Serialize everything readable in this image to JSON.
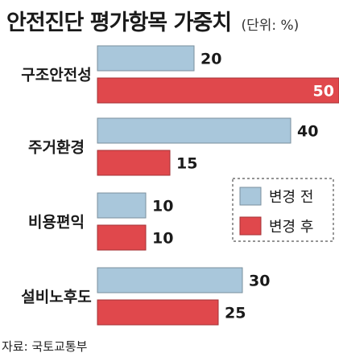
{
  "title": "안전진단 평가항목 가중치",
  "unit": "(단위: %)",
  "source": "자료: 국토교통부",
  "colors": {
    "before": "#a9c7db",
    "after": "#e0484c",
    "before_stroke": "#7a8f9c",
    "after_stroke": "#a33236",
    "after_label_inside": "#ffffff",
    "label": "#1a1a1a"
  },
  "chart_data": {
    "type": "bar",
    "orientation": "horizontal",
    "categories": [
      "구조안전성",
      "주거환경",
      "비용편익",
      "설비노후도"
    ],
    "series": [
      {
        "name": "변경 전",
        "values": [
          20,
          40,
          10,
          30
        ]
      },
      {
        "name": "변경 후",
        "values": [
          50,
          15,
          10,
          25
        ]
      }
    ],
    "xlim": [
      0,
      50
    ],
    "grid": false,
    "legend_position": "right-middle"
  }
}
